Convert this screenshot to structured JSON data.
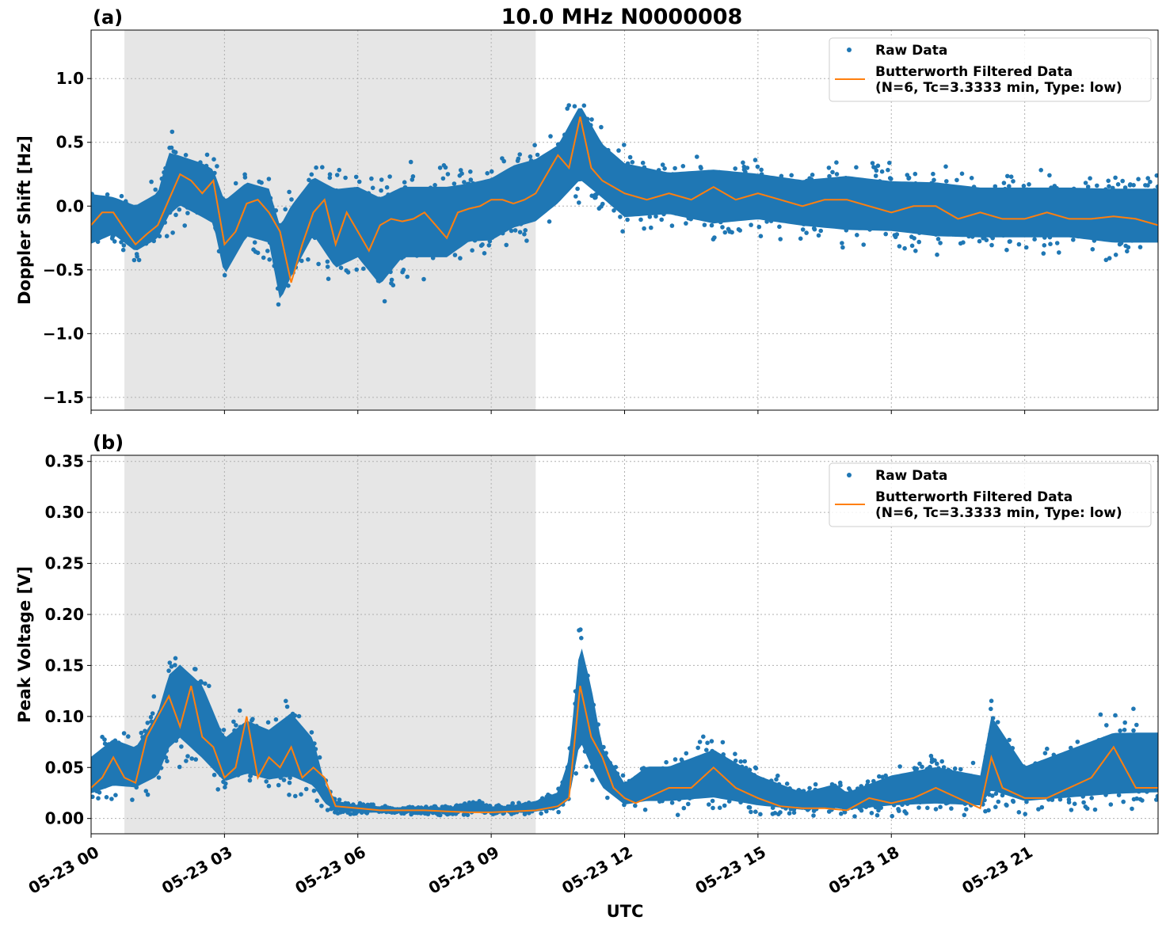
{
  "figure": {
    "title": "10.0 MHz N0000008",
    "xlabel": "UTC",
    "colors": {
      "raw": "#1f77b4",
      "filtered": "#ff7f0e",
      "shade": "#e6e6e6"
    }
  },
  "chart_data": [
    {
      "type": "scatter",
      "panel_label": "(a)",
      "title": "10.0 MHz N0000008",
      "xlabel": "",
      "ylabel": "Doppler Shift [Hz]",
      "xlim_hours": [
        0,
        24
      ],
      "ylim": [
        -1.6,
        1.38
      ],
      "x_ticks": [
        {
          "hour": 0,
          "label": "05-23 00"
        },
        {
          "hour": 3,
          "label": "05-23 03"
        },
        {
          "hour": 6,
          "label": "05-23 06"
        },
        {
          "hour": 9,
          "label": "05-23 09"
        },
        {
          "hour": 12,
          "label": "05-23 12"
        },
        {
          "hour": 15,
          "label": "05-23 15"
        },
        {
          "hour": 18,
          "label": "05-23 18"
        },
        {
          "hour": 21,
          "label": "05-23 21"
        }
      ],
      "y_ticks": [
        {
          "value": 1.0,
          "label": "1.0"
        },
        {
          "value": 0.5,
          "label": "0.5"
        },
        {
          "value": 0.0,
          "label": "0.0"
        },
        {
          "value": -0.5,
          "label": "−0.5"
        },
        {
          "value": -1.0,
          "label": "−1.0"
        },
        {
          "value": -1.5,
          "label": "−1.5"
        }
      ],
      "shaded_span_hours": [
        0.75,
        10.0
      ],
      "grid": true,
      "legend": {
        "position": "top-right",
        "raw_label": "Raw Data",
        "filtered_label_line1": "Butterworth Filtered Data",
        "filtered_label_line2": "(N=6, Tc=3.3333 min, Type: low)"
      },
      "series": [
        {
          "name": "Butterworth Filtered Data",
          "kind": "line",
          "x_hours": [
            0.0,
            0.25,
            0.5,
            0.75,
            1.0,
            1.25,
            1.5,
            1.75,
            2.0,
            2.25,
            2.5,
            2.75,
            3.0,
            3.25,
            3.5,
            3.75,
            4.0,
            4.25,
            4.5,
            4.75,
            5.0,
            5.25,
            5.5,
            5.75,
            6.0,
            6.25,
            6.5,
            6.75,
            7.0,
            7.25,
            7.5,
            7.75,
            8.0,
            8.25,
            8.5,
            8.75,
            9.0,
            9.25,
            9.5,
            9.75,
            10.0,
            10.25,
            10.5,
            10.75,
            11.0,
            11.25,
            11.5,
            11.75,
            12.0,
            12.5,
            13.0,
            13.5,
            14.0,
            14.5,
            15.0,
            15.5,
            16.0,
            16.5,
            17.0,
            17.5,
            18.0,
            18.5,
            19.0,
            19.5,
            20.0,
            20.5,
            21.0,
            21.5,
            22.0,
            22.5,
            23.0,
            23.5,
            24.0
          ],
          "y": [
            -0.15,
            -0.05,
            -0.05,
            -0.18,
            -0.3,
            -0.22,
            -0.15,
            0.05,
            0.25,
            0.2,
            0.1,
            0.2,
            -0.3,
            -0.2,
            0.02,
            0.05,
            -0.05,
            -0.2,
            -0.6,
            -0.3,
            -0.05,
            0.05,
            -0.3,
            -0.05,
            -0.2,
            -0.35,
            -0.15,
            -0.1,
            -0.12,
            -0.1,
            -0.05,
            -0.15,
            -0.25,
            -0.05,
            -0.02,
            0.0,
            0.05,
            0.05,
            0.02,
            0.05,
            0.1,
            0.25,
            0.4,
            0.3,
            0.7,
            0.3,
            0.2,
            0.15,
            0.1,
            0.05,
            0.1,
            0.05,
            0.15,
            0.05,
            0.1,
            0.05,
            0.0,
            0.05,
            0.05,
            0.0,
            -0.05,
            0.0,
            0.0,
            -0.1,
            -0.05,
            -0.1,
            -0.1,
            -0.05,
            -0.1,
            -0.1,
            -0.08,
            -0.1,
            -0.15
          ]
        },
        {
          "name": "Raw Data",
          "kind": "scatter",
          "band_x_hours": [
            0.0,
            0.5,
            1.0,
            1.5,
            1.75,
            2.0,
            2.5,
            2.75,
            3.0,
            3.5,
            4.0,
            4.25,
            4.5,
            5.0,
            5.5,
            6.0,
            6.5,
            7.0,
            7.5,
            8.0,
            8.5,
            9.0,
            9.5,
            10.0,
            10.5,
            11.0,
            11.5,
            12.0,
            13.0,
            14.0,
            15.0,
            16.0,
            17.0,
            18.0,
            19.0,
            20.0,
            21.0,
            22.0,
            23.0,
            24.0
          ],
          "band_low": [
            -0.4,
            -0.3,
            -0.45,
            -0.35,
            -0.2,
            -0.1,
            -0.2,
            -0.25,
            -0.7,
            -0.35,
            -0.4,
            -0.9,
            -0.7,
            -0.35,
            -0.65,
            -0.55,
            -0.8,
            -0.55,
            -0.55,
            -0.55,
            -0.4,
            -0.4,
            -0.3,
            -0.25,
            -0.1,
            0.05,
            -0.05,
            -0.2,
            -0.15,
            -0.25,
            -0.2,
            -0.25,
            -0.3,
            -0.3,
            -0.35,
            -0.35,
            -0.35,
            -0.35,
            -0.4,
            -0.4
          ],
          "band_high": [
            0.2,
            0.15,
            0.1,
            0.2,
            0.55,
            0.5,
            0.45,
            0.4,
            0.2,
            0.3,
            0.25,
            0.0,
            0.15,
            0.35,
            0.3,
            0.3,
            0.25,
            0.3,
            0.3,
            0.3,
            0.3,
            0.35,
            0.45,
            0.5,
            0.6,
            0.95,
            0.6,
            0.45,
            0.35,
            0.4,
            0.35,
            0.3,
            0.35,
            0.3,
            0.3,
            0.25,
            0.25,
            0.25,
            0.25,
            0.25
          ]
        }
      ]
    },
    {
      "type": "scatter",
      "panel_label": "(b)",
      "title": "",
      "xlabel": "UTC",
      "ylabel": "Peak Voltage [V]",
      "xlim_hours": [
        0,
        24
      ],
      "ylim": [
        -0.015,
        0.356
      ],
      "x_ticks": [
        {
          "hour": 0,
          "label": "05-23 00"
        },
        {
          "hour": 3,
          "label": "05-23 03"
        },
        {
          "hour": 6,
          "label": "05-23 06"
        },
        {
          "hour": 9,
          "label": "05-23 09"
        },
        {
          "hour": 12,
          "label": "05-23 12"
        },
        {
          "hour": 15,
          "label": "05-23 15"
        },
        {
          "hour": 18,
          "label": "05-23 18"
        },
        {
          "hour": 21,
          "label": "05-23 21"
        }
      ],
      "y_ticks": [
        {
          "value": 0.35,
          "label": "0.35"
        },
        {
          "value": 0.3,
          "label": "0.30"
        },
        {
          "value": 0.25,
          "label": "0.25"
        },
        {
          "value": 0.2,
          "label": "0.20"
        },
        {
          "value": 0.15,
          "label": "0.15"
        },
        {
          "value": 0.1,
          "label": "0.10"
        },
        {
          "value": 0.05,
          "label": "0.05"
        },
        {
          "value": 0.0,
          "label": "0.00"
        }
      ],
      "shaded_span_hours": [
        0.75,
        10.0
      ],
      "grid": true,
      "legend": {
        "position": "top-right",
        "raw_label": "Raw Data",
        "filtered_label_line1": "Butterworth Filtered Data",
        "filtered_label_line2": "(N=6, Tc=3.3333 min, Type: low)"
      },
      "series": [
        {
          "name": "Butterworth Filtered Data",
          "kind": "line",
          "x_hours": [
            0.0,
            0.25,
            0.5,
            0.75,
            1.0,
            1.25,
            1.5,
            1.75,
            2.0,
            2.25,
            2.5,
            2.75,
            3.0,
            3.25,
            3.5,
            3.75,
            4.0,
            4.25,
            4.5,
            4.75,
            5.0,
            5.25,
            5.5,
            6.0,
            6.5,
            7.0,
            7.5,
            8.0,
            8.5,
            9.0,
            9.5,
            10.0,
            10.25,
            10.5,
            10.75,
            11.0,
            11.25,
            11.5,
            11.75,
            12.0,
            12.25,
            12.5,
            13.0,
            13.5,
            14.0,
            14.5,
            15.0,
            15.5,
            16.0,
            16.5,
            17.0,
            17.5,
            18.0,
            18.5,
            19.0,
            19.5,
            20.0,
            20.25,
            20.5,
            21.0,
            21.5,
            22.0,
            22.5,
            23.0,
            23.5,
            24.0
          ],
          "y": [
            0.03,
            0.04,
            0.06,
            0.04,
            0.035,
            0.08,
            0.1,
            0.12,
            0.09,
            0.13,
            0.08,
            0.07,
            0.04,
            0.05,
            0.1,
            0.04,
            0.06,
            0.05,
            0.07,
            0.04,
            0.05,
            0.04,
            0.012,
            0.01,
            0.008,
            0.008,
            0.008,
            0.007,
            0.006,
            0.006,
            0.007,
            0.008,
            0.01,
            0.012,
            0.02,
            0.13,
            0.08,
            0.06,
            0.03,
            0.02,
            0.015,
            0.02,
            0.03,
            0.03,
            0.05,
            0.03,
            0.02,
            0.012,
            0.01,
            0.01,
            0.008,
            0.02,
            0.015,
            0.02,
            0.03,
            0.02,
            0.01,
            0.06,
            0.03,
            0.02,
            0.02,
            0.03,
            0.04,
            0.07,
            0.03,
            0.03
          ]
        },
        {
          "name": "Raw Data",
          "kind": "scatter",
          "band_x_hours": [
            0.0,
            0.5,
            1.0,
            1.5,
            1.75,
            2.0,
            2.5,
            3.0,
            3.5,
            4.0,
            4.5,
            5.0,
            5.25,
            5.5,
            6.0,
            7.0,
            8.0,
            8.75,
            9.0,
            9.5,
            10.0,
            10.5,
            10.75,
            11.0,
            11.25,
            11.5,
            12.0,
            12.5,
            13.0,
            14.0,
            15.0,
            16.0,
            16.75,
            17.0,
            18.0,
            19.0,
            20.0,
            20.25,
            21.0,
            22.0,
            23.0,
            24.0
          ],
          "band_low": [
            0.015,
            0.02,
            0.02,
            0.025,
            0.05,
            0.06,
            0.04,
            0.025,
            0.03,
            0.025,
            0.025,
            0.02,
            0.01,
            0.005,
            0.004,
            0.004,
            0.004,
            0.004,
            0.004,
            0.004,
            0.004,
            0.005,
            0.008,
            0.05,
            0.03,
            0.02,
            0.008,
            0.008,
            0.008,
            0.008,
            0.005,
            0.004,
            0.004,
            0.004,
            0.005,
            0.005,
            0.005,
            0.008,
            0.008,
            0.008,
            0.008,
            0.01
          ],
          "band_high": [
            0.07,
            0.09,
            0.08,
            0.12,
            0.16,
            0.17,
            0.15,
            0.09,
            0.11,
            0.1,
            0.12,
            0.09,
            0.04,
            0.02,
            0.015,
            0.012,
            0.012,
            0.02,
            0.012,
            0.015,
            0.02,
            0.03,
            0.07,
            0.2,
            0.15,
            0.08,
            0.04,
            0.06,
            0.06,
            0.08,
            0.05,
            0.03,
            0.04,
            0.03,
            0.05,
            0.06,
            0.05,
            0.12,
            0.06,
            0.08,
            0.1,
            0.1
          ]
        }
      ]
    }
  ]
}
